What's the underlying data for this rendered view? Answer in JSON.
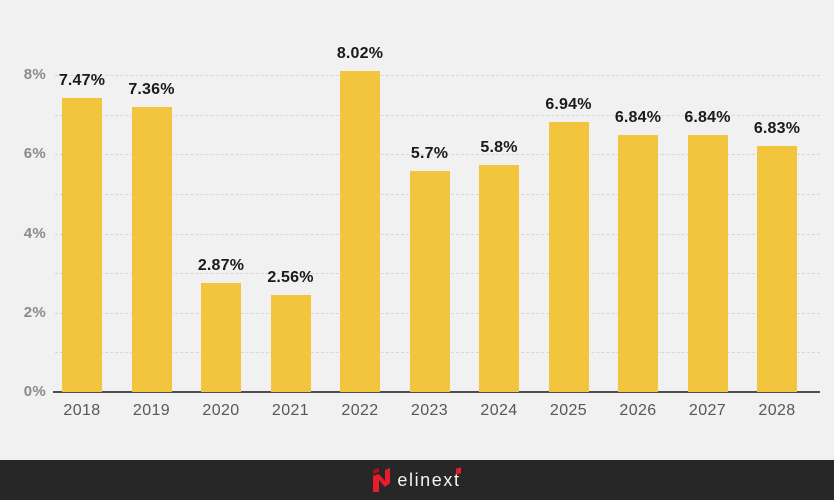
{
  "page": {
    "background_color": "#F1F1F1"
  },
  "chart_data": {
    "type": "bar",
    "title": "",
    "xlabel": "",
    "ylabel": "",
    "categories": [
      "2018",
      "2019",
      "2020",
      "2021",
      "2022",
      "2023",
      "2024",
      "2025",
      "2026",
      "2027",
      "2028"
    ],
    "values": [
      7.47,
      7.36,
      2.87,
      2.56,
      8.02,
      5.7,
      5.8,
      6.94,
      6.84,
      6.84,
      6.83
    ],
    "labels": [
      "7.47%",
      "7.36%",
      "2.87%",
      "2.56%",
      "8.02%",
      "5.7%",
      "5.8%",
      "6.94%",
      "6.84%",
      "6.84%",
      "6.83%"
    ],
    "display_heights_pct": [
      7.42,
      7.2,
      2.75,
      2.45,
      8.1,
      5.57,
      5.73,
      6.83,
      6.5,
      6.5,
      6.2
    ],
    "ylim": [
      0,
      8.5
    ],
    "y_ticks": [
      {
        "value": 0,
        "label": "0%"
      },
      {
        "value": 2,
        "label": "2%"
      },
      {
        "value": 4,
        "label": "4%"
      },
      {
        "value": 6,
        "label": "6%"
      },
      {
        "value": 8,
        "label": "8%"
      }
    ],
    "gridlines": "dashed horizontal every 1%",
    "legend": "none",
    "bar_color": "#F3C43D",
    "grid_color": "#D7D7D7",
    "axis_line_color": "#4E4E4E",
    "value_label_color": "#1A1A1A",
    "tick_label_color": "#8A8A8A",
    "category_label_color": "#575757"
  },
  "footer": {
    "background_color": "#272727",
    "logo_text": "elinext",
    "brand_red": "#E81C2E"
  }
}
